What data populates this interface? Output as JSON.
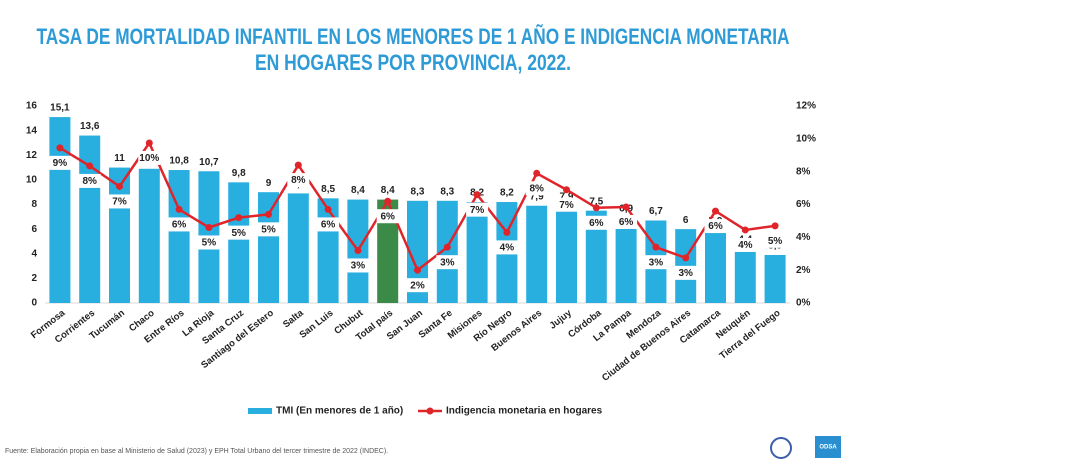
{
  "chart_data": {
    "type": "bar",
    "title": [
      "TASA DE MORTALIDAD INFANTIL EN LOS MENORES DE 1 AÑO E INDIGENCIA MONETARIA",
      "EN HOGARES POR PROVINCIA, 2022."
    ],
    "categories": [
      "Formosa",
      "Corrientes",
      "Tucumán",
      "Chaco",
      "Entre Ríos",
      "La Rioja",
      "Santa Cruz",
      "Santiago del Estero",
      "Salta",
      "San Luis",
      "Chubut",
      "Total país",
      "San Juan",
      "Santa Fe",
      "Misiones",
      "Río Negro",
      "Buenos Aires",
      "Jujuy",
      "Córdoba",
      "La Pampa",
      "Mendoza",
      "Ciudad de Buenos Aires",
      "Catamarca",
      "Neuquén",
      "Tierra del Fuego"
    ],
    "series": [
      {
        "name": "TMI (En menores de 1 año)",
        "type": "bar",
        "color": "#29aee0",
        "colors": [
          "#29aee0",
          "#29aee0",
          "#29aee0",
          "#29aee0",
          "#29aee0",
          "#29aee0",
          "#29aee0",
          "#29aee0",
          "#29aee0",
          "#29aee0",
          "#29aee0",
          "#3b8a48",
          "#29aee0",
          "#29aee0",
          "#29aee0",
          "#29aee0",
          "#29aee0",
          "#29aee0",
          "#29aee0",
          "#29aee0",
          "#29aee0",
          "#29aee0",
          "#29aee0",
          "#29aee0",
          "#29aee0"
        ],
        "values": [
          15.1,
          13.6,
          11,
          10.9,
          10.8,
          10.7,
          9.8,
          9,
          8.9,
          8.5,
          8.4,
          8.4,
          8.3,
          8.3,
          8.2,
          8.2,
          7.9,
          7.9,
          7.5,
          6.9,
          6.7,
          6,
          5.9,
          4.4,
          3.9
        ],
        "value_labels": [
          "15,1",
          "13,6",
          "11",
          "10,9",
          "10,8",
          "10,7",
          "9,8",
          "9",
          "8,9",
          "8,5",
          "8,4",
          "8,4",
          "8,3",
          "8,3",
          "8,2",
          "8,2",
          "7,9",
          "7,9",
          "7,5",
          "6,9",
          "6,7",
          "6",
          "5,9",
          "4,4",
          "3,9"
        ]
      },
      {
        "name": "Indigencia monetaria en hogares",
        "type": "line",
        "axis": "y2",
        "color": "#e0252a",
        "values": [
          9.45,
          8.35,
          7.1,
          9.75,
          5.7,
          4.6,
          5.2,
          5.4,
          8.4,
          5.7,
          3.2,
          6.2,
          2.0,
          3.4,
          6.6,
          4.3,
          7.9,
          6.9,
          5.8,
          5.85,
          3.4,
          2.75,
          5.6,
          4.45,
          4.7
        ],
        "value_labels": [
          "9%",
          "8%",
          "7%",
          "10%",
          "6%",
          "5%",
          "5%",
          "5%",
          "8%",
          "6%",
          "3%",
          "6%",
          "2%",
          "3%",
          "7%",
          "4%",
          "8%",
          "7%",
          "6%",
          "6%",
          "3%",
          "3%",
          "6%",
          "4%",
          "5%"
        ]
      }
    ],
    "ylim": [
      0,
      16
    ],
    "yticks": [
      0,
      2,
      4,
      6,
      8,
      10,
      12,
      14,
      16
    ],
    "y2lim": [
      0,
      12
    ],
    "y2ticks": [
      {
        "value": 0,
        "label": "0%"
      },
      {
        "value": 2,
        "label": "2%"
      },
      {
        "value": 4,
        "label": "4%"
      },
      {
        "value": 6,
        "label": "6%"
      },
      {
        "value": 8,
        "label": "8%"
      },
      {
        "value": 10,
        "label": "10%"
      },
      {
        "value": 12,
        "label": "12%"
      }
    ],
    "grid": false,
    "legend": "bottom"
  },
  "source": "Fuente: Elaboración propia en base al Ministerio de Salud (2023) y EPH Total Urbano del tercer trimestre de 2022 (INDEC).",
  "logo": "ODSA"
}
